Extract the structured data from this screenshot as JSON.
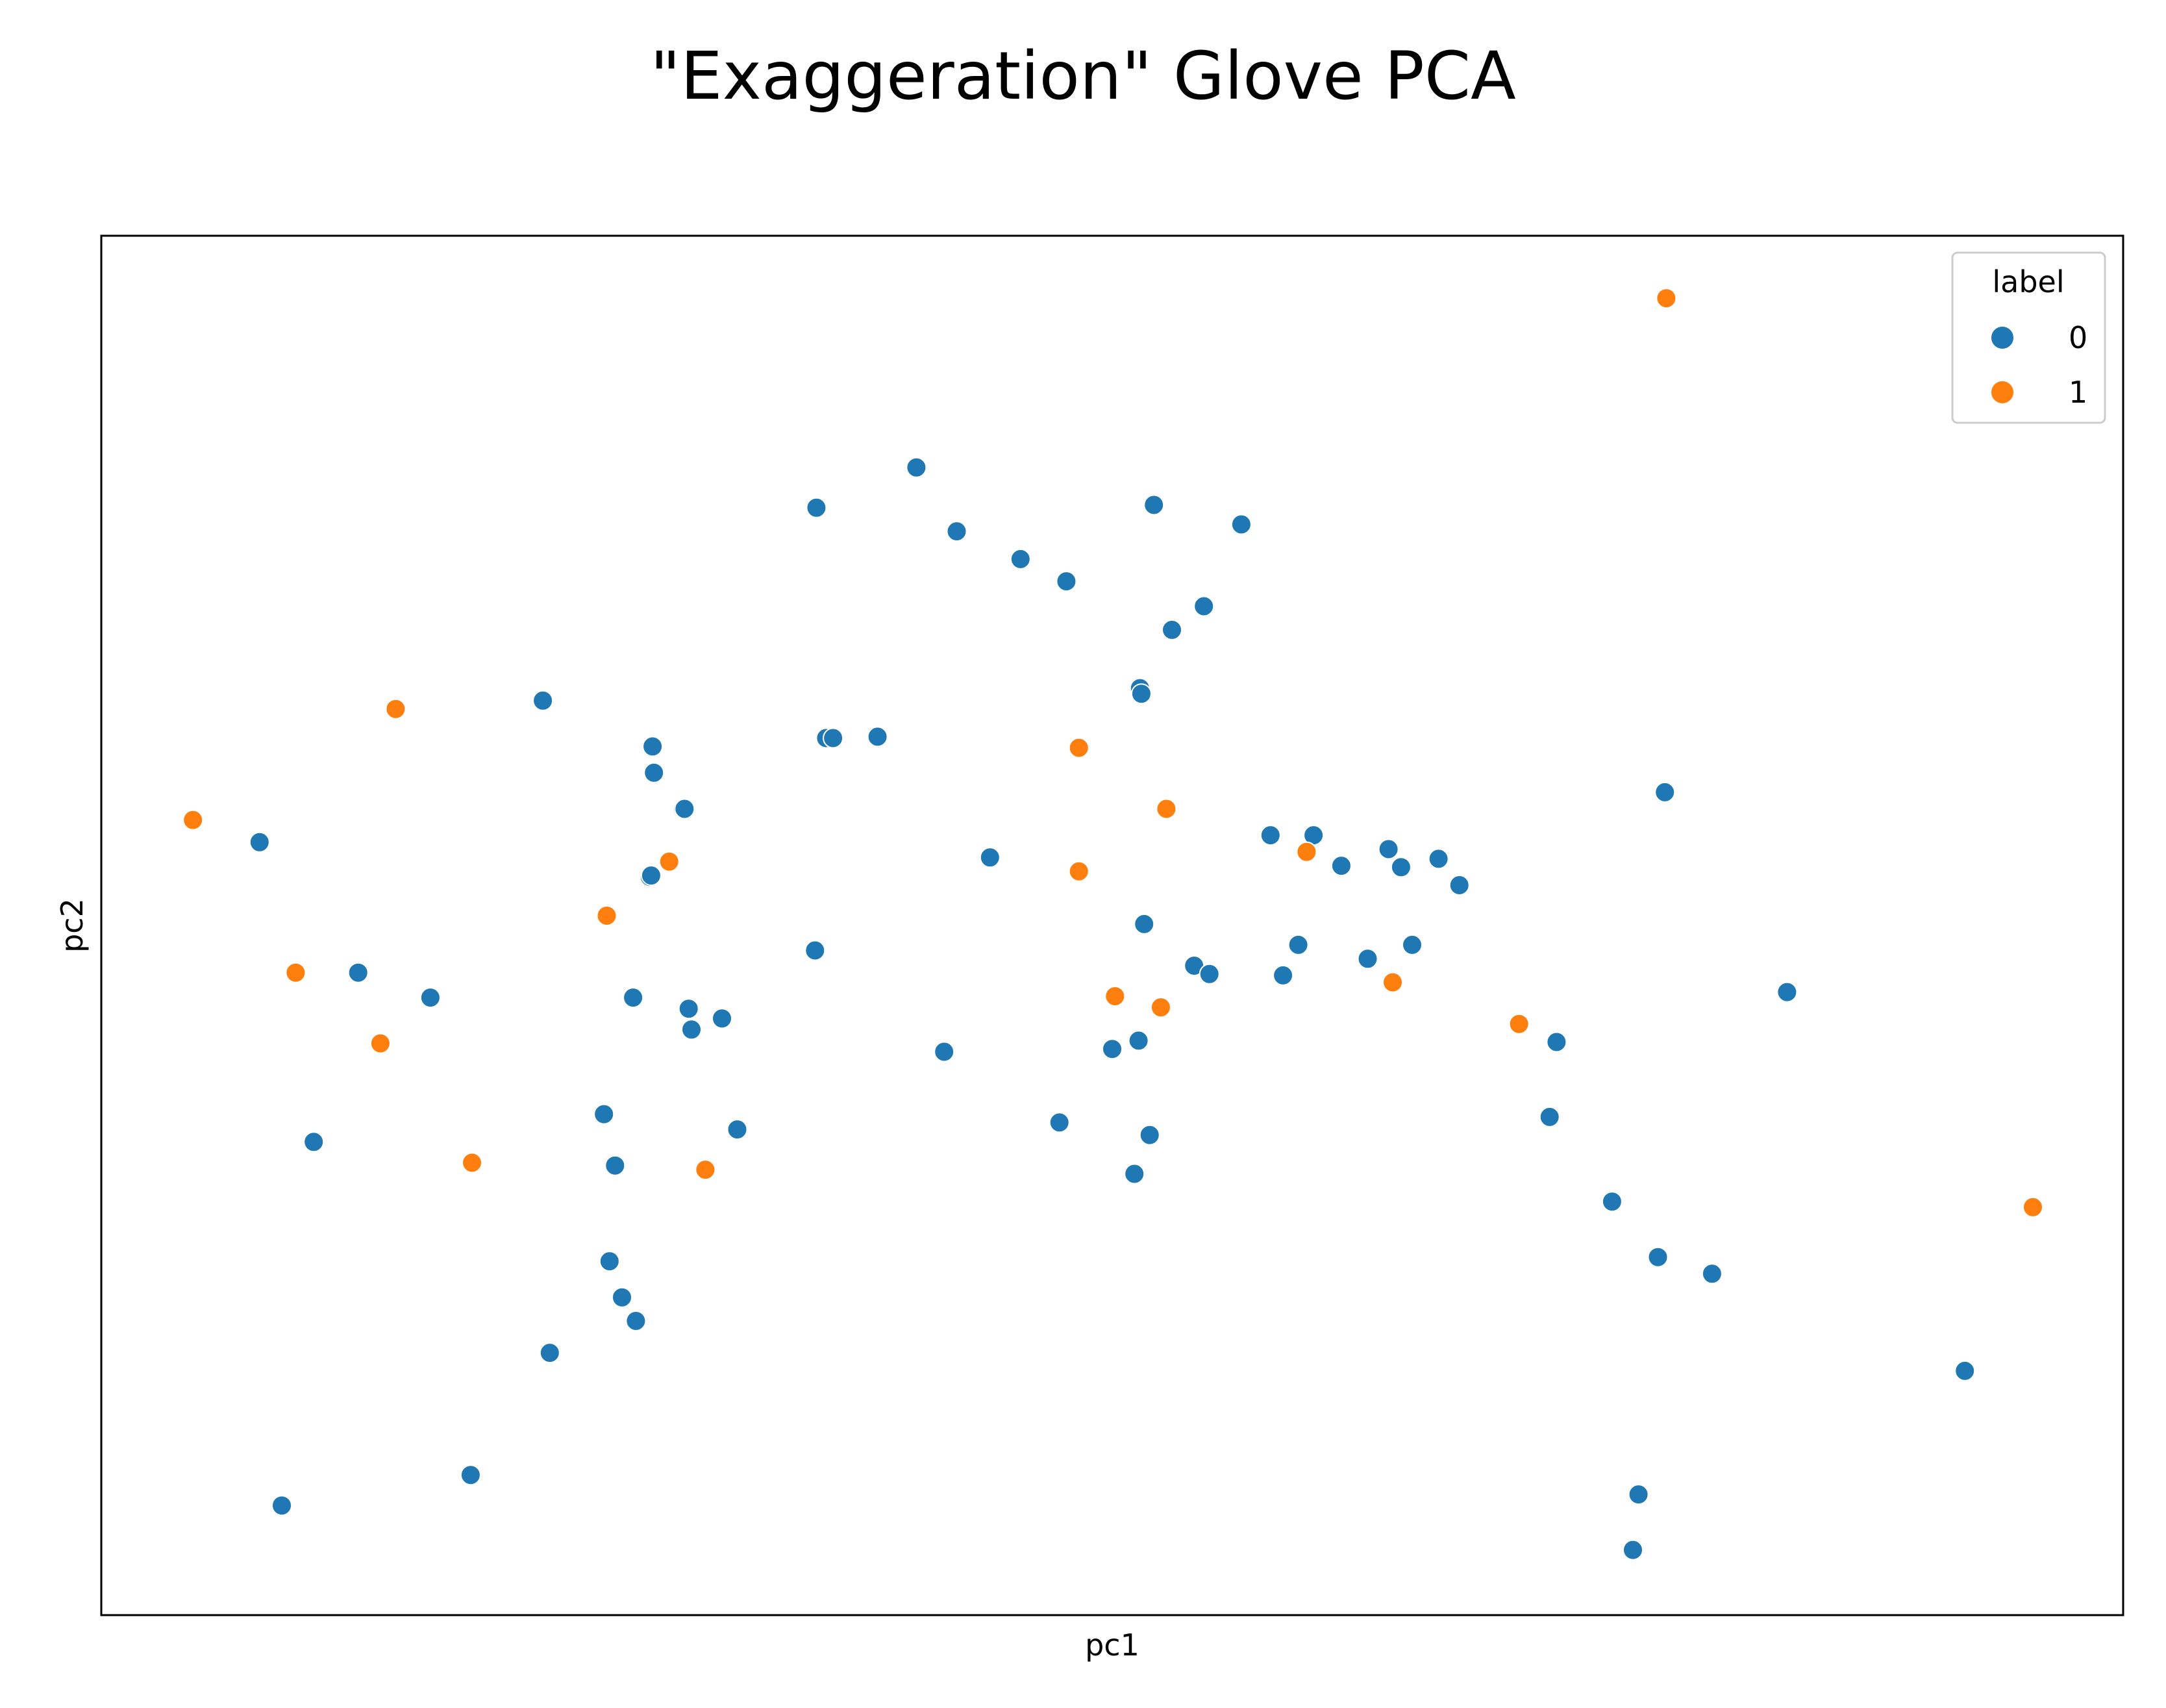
{
  "chart_data": {
    "type": "scatter",
    "title": "\"Exaggeration\" Glove PCA",
    "xlabel": "pc1",
    "ylabel": "pc2",
    "xticks": false,
    "yticks": false,
    "xlim": [
      0,
      1456
    ],
    "ylim": [
      0,
      994
    ],
    "grid": false,
    "legend": {
      "title": "label",
      "placement": "top-right",
      "entries": [
        {
          "label": "0",
          "color": "#1f77b4"
        },
        {
          "label": "1",
          "color": "#ff7f0e"
        }
      ]
    },
    "series": [
      {
        "name": "0",
        "color": "#1f77b4",
        "points": [
          [
            114,
            557
          ],
          [
            130,
            79
          ],
          [
            153,
            341
          ],
          [
            185,
            463
          ],
          [
            237,
            445
          ],
          [
            266,
            101
          ],
          [
            318,
            659
          ],
          [
            323,
            189
          ],
          [
            362,
            361
          ],
          [
            366,
            255
          ],
          [
            370,
            324
          ],
          [
            375,
            229
          ],
          [
            383,
            445
          ],
          [
            385,
            212
          ],
          [
            395,
            532
          ],
          [
            397,
            626
          ],
          [
            398,
            607
          ],
          [
            396,
            533
          ],
          [
            419,
            581
          ],
          [
            420,
            581
          ],
          [
            423,
            437
          ],
          [
            425,
            422
          ],
          [
            447,
            430
          ],
          [
            458,
            350
          ],
          [
            514,
            479
          ],
          [
            515,
            798
          ],
          [
            522,
            632
          ],
          [
            527,
            632
          ],
          [
            559,
            633
          ],
          [
            587,
            827
          ],
          [
            607,
            406
          ],
          [
            616,
            781
          ],
          [
            640,
            546
          ],
          [
            662,
            761
          ],
          [
            690,
            355
          ],
          [
            695,
            745
          ],
          [
            728,
            408
          ],
          [
            747,
            414
          ],
          [
            748,
            668
          ],
          [
            749,
            664
          ],
          [
            744,
            318
          ],
          [
            751,
            498
          ],
          [
            755,
            346
          ],
          [
            758,
            800
          ],
          [
            771,
            710
          ],
          [
            787,
            468
          ],
          [
            794,
            727
          ],
          [
            798,
            462
          ],
          [
            821,
            786
          ],
          [
            842,
            562
          ],
          [
            851,
            461
          ],
          [
            862,
            483
          ],
          [
            873,
            562
          ],
          [
            893,
            540
          ],
          [
            912,
            473
          ],
          [
            927,
            552
          ],
          [
            936,
            539
          ],
          [
            944,
            483
          ],
          [
            963,
            545
          ],
          [
            978,
            526
          ],
          [
            1043,
            359
          ],
          [
            1048,
            413
          ],
          [
            1088,
            298
          ],
          [
            1103,
            47
          ],
          [
            1107,
            87
          ],
          [
            1121,
            258
          ],
          [
            1126,
            593
          ],
          [
            1160,
            246
          ],
          [
            1214,
            449
          ],
          [
            1342,
            176
          ]
        ]
      },
      {
        "name": "1",
        "color": "#ff7f0e",
        "points": [
          [
            66,
            573
          ],
          [
            140,
            463
          ],
          [
            201,
            412
          ],
          [
            212,
            653
          ],
          [
            267,
            326
          ],
          [
            364,
            504
          ],
          [
            409,
            543
          ],
          [
            435,
            321
          ],
          [
            704,
            625
          ],
          [
            704,
            536
          ],
          [
            730,
            446
          ],
          [
            763,
            438
          ],
          [
            767,
            581
          ],
          [
            868,
            550
          ],
          [
            930,
            456
          ],
          [
            1021,
            426
          ],
          [
            1127,
            949
          ],
          [
            1391,
            294
          ]
        ]
      }
    ]
  }
}
